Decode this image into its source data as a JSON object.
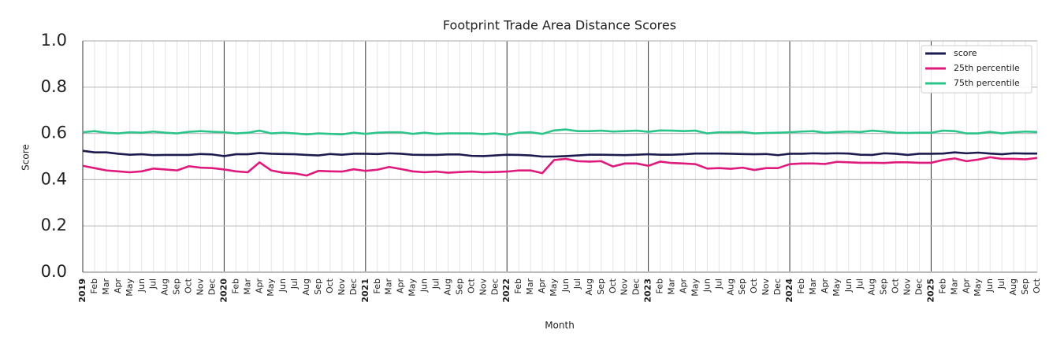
{
  "chart_data": {
    "type": "line",
    "title": "Footprint Trade Area Distance Scores",
    "x_label": "Month",
    "y_label": "Score",
    "categories": [
      "2019",
      "Feb",
      "Mar",
      "Apr",
      "May",
      "Jun",
      "Jul",
      "Aug",
      "Sep",
      "Oct",
      "Nov",
      "Dec",
      "2020",
      "Feb",
      "Mar",
      "Apr",
      "May",
      "Jun",
      "Jul",
      "Aug",
      "Sep",
      "Oct",
      "Nov",
      "Dec",
      "2021",
      "Feb",
      "Mar",
      "Apr",
      "May",
      "Jun",
      "Jul",
      "Aug",
      "Sep",
      "Oct",
      "Nov",
      "Dec",
      "2022",
      "Feb",
      "Mar",
      "Apr",
      "May",
      "Jun",
      "Jul",
      "Aug",
      "Sep",
      "Oct",
      "Nov",
      "Dec",
      "2023",
      "Feb",
      "Mar",
      "Apr",
      "May",
      "Jun",
      "Jul",
      "Aug",
      "Sep",
      "Oct",
      "Nov",
      "Dec",
      "2024",
      "Feb",
      "Mar",
      "Apr",
      "May",
      "Jun",
      "Jul",
      "Aug",
      "Sep",
      "Oct",
      "Nov",
      "Dec",
      "2025",
      "Feb",
      "Mar",
      "Apr",
      "May",
      "Jun",
      "Jul",
      "Aug",
      "Sep",
      "Oct"
    ],
    "series": [
      {
        "name": "score",
        "color": "#1b1b4f",
        "values": [
          0.525,
          0.518,
          0.518,
          0.512,
          0.508,
          0.51,
          0.506,
          0.507,
          0.507,
          0.507,
          0.511,
          0.509,
          0.502,
          0.51,
          0.51,
          0.515,
          0.512,
          0.511,
          0.51,
          0.507,
          0.505,
          0.511,
          0.508,
          0.512,
          0.512,
          0.511,
          0.514,
          0.512,
          0.508,
          0.507,
          0.507,
          0.509,
          0.509,
          0.503,
          0.502,
          0.505,
          0.508,
          0.507,
          0.505,
          0.5,
          0.5,
          0.502,
          0.505,
          0.508,
          0.508,
          0.507,
          0.506,
          0.508,
          0.51,
          0.508,
          0.508,
          0.51,
          0.513,
          0.513,
          0.513,
          0.512,
          0.511,
          0.51,
          0.511,
          0.506,
          0.512,
          0.512,
          0.514,
          0.513,
          0.514,
          0.513,
          0.508,
          0.507,
          0.514,
          0.512,
          0.507,
          0.512,
          0.512,
          0.513,
          0.518,
          0.514,
          0.517,
          0.513,
          0.51,
          0.514,
          0.513,
          0.513
        ]
      },
      {
        "name": "25th percentile",
        "color": "#e0197d",
        "values": [
          0.46,
          0.45,
          0.44,
          0.436,
          0.432,
          0.436,
          0.448,
          0.444,
          0.44,
          0.458,
          0.452,
          0.45,
          0.444,
          0.436,
          0.432,
          0.475,
          0.44,
          0.43,
          0.427,
          0.418,
          0.438,
          0.436,
          0.435,
          0.445,
          0.438,
          0.443,
          0.455,
          0.446,
          0.436,
          0.432,
          0.435,
          0.43,
          0.433,
          0.435,
          0.432,
          0.433,
          0.435,
          0.44,
          0.44,
          0.428,
          0.485,
          0.49,
          0.48,
          0.478,
          0.48,
          0.457,
          0.47,
          0.47,
          0.46,
          0.478,
          0.472,
          0.47,
          0.467,
          0.448,
          0.45,
          0.447,
          0.452,
          0.442,
          0.45,
          0.45,
          0.467,
          0.47,
          0.47,
          0.468,
          0.477,
          0.475,
          0.473,
          0.473,
          0.472,
          0.475,
          0.475,
          0.473,
          0.473,
          0.485,
          0.492,
          0.48,
          0.487,
          0.497,
          0.49,
          0.49,
          0.488,
          0.494
        ]
      },
      {
        "name": "75th percentile",
        "color": "#2bc48a",
        "values": [
          0.605,
          0.61,
          0.603,
          0.6,
          0.605,
          0.603,
          0.608,
          0.603,
          0.6,
          0.607,
          0.61,
          0.607,
          0.605,
          0.6,
          0.603,
          0.612,
          0.6,
          0.603,
          0.6,
          0.596,
          0.6,
          0.598,
          0.596,
          0.603,
          0.598,
          0.603,
          0.605,
          0.605,
          0.598,
          0.603,
          0.598,
          0.6,
          0.6,
          0.6,
          0.597,
          0.6,
          0.594,
          0.603,
          0.605,
          0.598,
          0.613,
          0.617,
          0.61,
          0.61,
          0.612,
          0.608,
          0.61,
          0.612,
          0.607,
          0.613,
          0.612,
          0.61,
          0.612,
          0.6,
          0.605,
          0.605,
          0.606,
          0.6,
          0.602,
          0.603,
          0.605,
          0.608,
          0.61,
          0.603,
          0.606,
          0.608,
          0.606,
          0.612,
          0.608,
          0.603,
          0.602,
          0.603,
          0.603,
          0.612,
          0.61,
          0.6,
          0.6,
          0.607,
          0.6,
          0.605,
          0.608,
          0.606
        ]
      }
    ],
    "ylim": [
      0,
      1
    ],
    "yticks": [
      {
        "value": 0,
        "label": "0.0"
      },
      {
        "value": 0.2,
        "label": "0.2"
      },
      {
        "value": 0.4,
        "label": "0.4"
      },
      {
        "value": 0.6,
        "label": "0.6"
      },
      {
        "value": 0.8,
        "label": "0.8"
      },
      {
        "value": 1,
        "label": "1.0"
      }
    ],
    "grid": true,
    "legend": "upper right"
  }
}
